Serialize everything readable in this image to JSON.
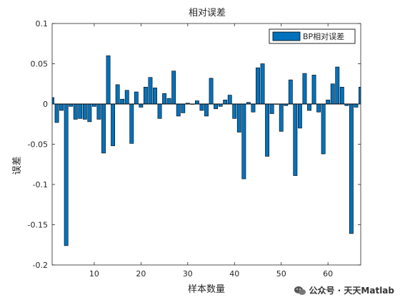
{
  "chart_data": {
    "type": "bar",
    "title": "相对误差",
    "xlabel": "样本数量",
    "ylabel": "误差",
    "xlim": [
      1,
      67
    ],
    "ylim": [
      -0.2,
      0.1
    ],
    "xticks": [
      10,
      20,
      30,
      40,
      50,
      60
    ],
    "yticks": [
      -0.2,
      -0.15,
      -0.1,
      -0.05,
      0,
      0.05,
      0.1
    ],
    "ytick_labels": [
      "-0.2",
      "-0.15",
      "-0.1",
      "-0.05",
      "0",
      "0.05",
      "0.1"
    ],
    "legend": {
      "position": "top-right"
    },
    "grid": false,
    "series": [
      {
        "name": "BP相对误差",
        "color": "#0072BD",
        "x": [
          1,
          2,
          3,
          4,
          5,
          6,
          7,
          8,
          9,
          10,
          11,
          12,
          13,
          14,
          15,
          16,
          17,
          18,
          19,
          20,
          21,
          22,
          23,
          24,
          25,
          26,
          27,
          28,
          29,
          30,
          31,
          32,
          33,
          34,
          35,
          36,
          37,
          38,
          39,
          40,
          41,
          42,
          43,
          44,
          45,
          46,
          47,
          48,
          49,
          50,
          51,
          52,
          53,
          54,
          55,
          56,
          57,
          58,
          59,
          60,
          61,
          62,
          63,
          64,
          65,
          66,
          67
        ],
        "values": [
          0.008,
          -0.023,
          -0.008,
          -0.176,
          -0.003,
          -0.019,
          -0.018,
          -0.019,
          -0.022,
          -0.003,
          -0.019,
          -0.061,
          0.06,
          -0.052,
          0.024,
          0.006,
          0.017,
          -0.049,
          0.015,
          -0.004,
          0.021,
          0.033,
          0.02,
          -0.018,
          0.013,
          0.007,
          0.041,
          -0.015,
          -0.011,
          0.001,
          0.0,
          0.004,
          -0.008,
          -0.015,
          0.032,
          -0.006,
          -0.003,
          0.005,
          0.011,
          -0.018,
          -0.035,
          -0.093,
          0.002,
          -0.01,
          0.045,
          0.05,
          -0.065,
          -0.012,
          0.0,
          -0.034,
          -0.002,
          0.03,
          -0.089,
          -0.03,
          0.038,
          -0.008,
          0.036,
          -0.01,
          -0.062,
          0.005,
          0.025,
          0.046,
          0.021,
          -0.002,
          -0.161,
          -0.004,
          0.021
        ]
      }
    ]
  },
  "watermark": {
    "icon": "wechat-icon",
    "text": "公众号 · 天天Matlab"
  }
}
